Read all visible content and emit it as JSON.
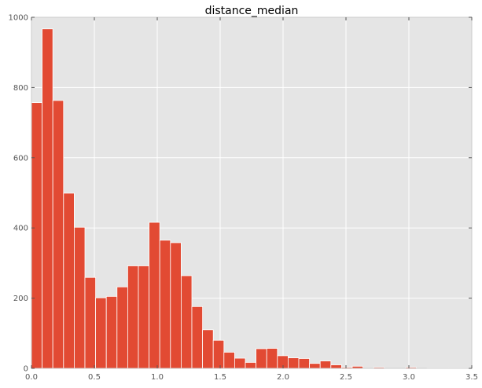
{
  "chart_data": {
    "type": "bar",
    "title": "distance_median",
    "xlabel": "",
    "ylabel": "",
    "xlim": [
      0,
      3.5
    ],
    "ylim": [
      0,
      1000
    ],
    "xticks": [
      "0.0",
      "0.5",
      "1.0",
      "1.5",
      "2.0",
      "2.5",
      "3.0",
      "3.5"
    ],
    "yticks": [
      "0",
      "200",
      "400",
      "600",
      "800",
      "1000"
    ],
    "grid": true,
    "bin_width": 0.085,
    "bin_starts": [
      0.0,
      0.085,
      0.17,
      0.255,
      0.34,
      0.425,
      0.51,
      0.595,
      0.68,
      0.765,
      0.85,
      0.935,
      1.02,
      1.105,
      1.19,
      1.275,
      1.36,
      1.445,
      1.53,
      1.615,
      1.7,
      1.785,
      1.87,
      1.955,
      2.04,
      2.125,
      2.21,
      2.295,
      2.38,
      2.465,
      2.55,
      2.635,
      2.72,
      2.805,
      2.89,
      2.975,
      3.06,
      3.145,
      3.23,
      3.315,
      3.4
    ],
    "values": [
      757,
      967,
      763,
      499,
      402,
      259,
      201,
      205,
      232,
      292,
      292,
      416,
      365,
      358,
      264,
      176,
      110,
      80,
      46,
      29,
      17,
      56,
      57,
      36,
      30,
      28,
      14,
      21,
      10,
      3,
      6,
      0,
      3,
      0,
      0,
      3,
      0,
      1,
      1,
      1,
      1
    ],
    "colors": {
      "bar": "#E24A33",
      "background": "#E5E5E5",
      "grid": "#FFFFFF",
      "frame": "#CCCCCC"
    }
  }
}
